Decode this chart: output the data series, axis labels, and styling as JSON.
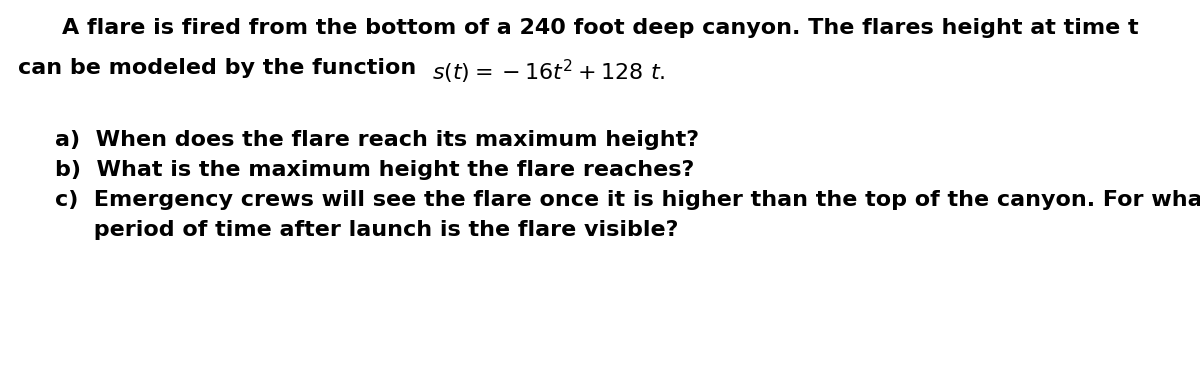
{
  "background_color": "#ffffff",
  "fig_width": 12.0,
  "fig_height": 3.89,
  "dpi": 100,
  "line1": "A flare is fired from the bottom of a 240 foot deep canyon. The flares height at time t",
  "line2_plain": "can be modeled by the function  ",
  "line2_math": "$s(t) = -16t^2 + 128\\ t.$",
  "qa_text": "a)  When does the flare reach its maximum height?",
  "qb_text": "b)  What is the maximum height the flare reaches?",
  "qc_text": "c)  Emergency crews will see the flare once it is higher than the top of the canyon. For what",
  "qc2_text": "     period of time after launch is the flare visible?",
  "font_size": 16,
  "font_weight": "bold",
  "text_color": "#000000"
}
